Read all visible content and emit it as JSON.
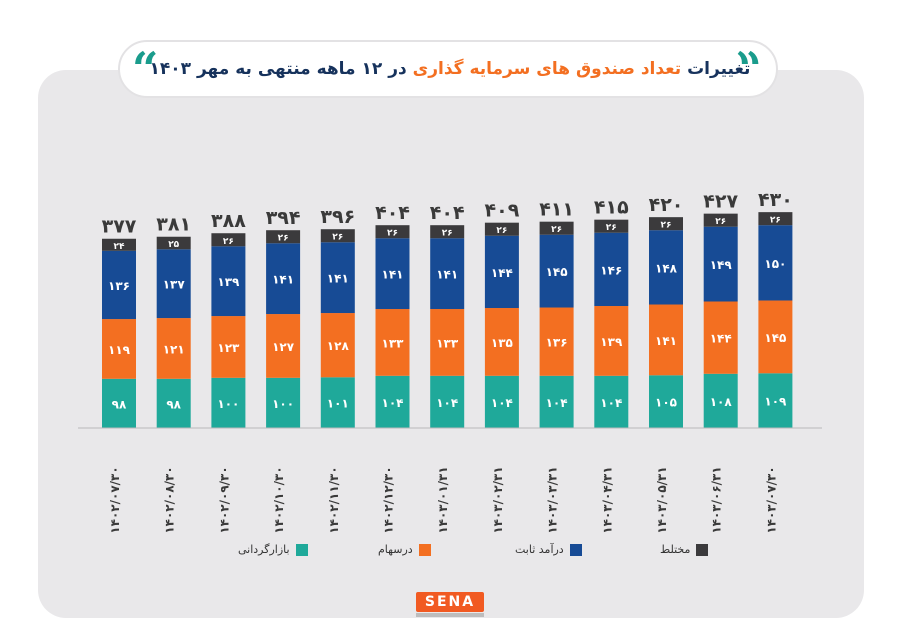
{
  "title": {
    "part1": "تغییرات",
    "part2": "تعداد صندوق های سرمایه گذاری",
    "part3": "در ۱۲ ماهه منتهی به مهر ۱۴۰۳",
    "colors": {
      "dark": "#16325c",
      "accent": "#f36f21"
    }
  },
  "quote_glyph": "“",
  "logo_text": "SENA",
  "chart_data": {
    "type": "bar",
    "stacked": true,
    "categories": [
      "۱۴۰۲/۰۷/۳۰",
      "۱۴۰۲/۰۸/۳۰",
      "۱۴۰۲/۰۹/۳۰",
      "۱۴۰۲/۱۰/۳۰",
      "۱۴۰۲/۱۱/۳۰",
      "۱۴۰۲/۱۲/۳۰",
      "۱۴۰۳/۰۱/۳۱",
      "۱۴۰۳/۰۲/۳۱",
      "۱۴۰۳/۰۳/۳۱",
      "۱۴۰۳/۰۴/۳۱",
      "۱۴۰۳/۰۵/۳۱",
      "۱۴۰۳/۰۶/۳۱",
      "۱۴۰۳/۰۷/۳۰"
    ],
    "series": [
      {
        "name": "بازارگردانی",
        "color": "#1fa99a",
        "values": [
          98,
          98,
          100,
          100,
          101,
          104,
          104,
          104,
          104,
          104,
          105,
          108,
          109
        ],
        "labels": [
          "۹۸",
          "۹۸",
          "۱۰۰",
          "۱۰۰",
          "۱۰۱",
          "۱۰۴",
          "۱۰۴",
          "۱۰۴",
          "۱۰۴",
          "۱۰۴",
          "۱۰۵",
          "۱۰۸",
          "۱۰۹"
        ]
      },
      {
        "name": "درسهام",
        "color": "#f36f21",
        "values": [
          119,
          121,
          123,
          127,
          128,
          133,
          133,
          135,
          136,
          139,
          141,
          144,
          145
        ],
        "labels": [
          "۱۱۹",
          "۱۲۱",
          "۱۲۳",
          "۱۲۷",
          "۱۲۸",
          "۱۳۳",
          "۱۳۳",
          "۱۳۵",
          "۱۳۶",
          "۱۳۹",
          "۱۴۱",
          "۱۴۴",
          "۱۴۵"
        ]
      },
      {
        "name": "درآمد ثابت",
        "color": "#174b95",
        "values": [
          136,
          137,
          139,
          141,
          141,
          141,
          141,
          144,
          145,
          146,
          148,
          149,
          150
        ],
        "labels": [
          "۱۳۶",
          "۱۳۷",
          "۱۳۹",
          "۱۴۱",
          "۱۴۱",
          "۱۴۱",
          "۱۴۱",
          "۱۴۴",
          "۱۴۵",
          "۱۴۶",
          "۱۴۸",
          "۱۴۹",
          "۱۵۰"
        ]
      },
      {
        "name": "مختلط",
        "color": "#3b3a3c",
        "values": [
          24,
          25,
          26,
          26,
          26,
          26,
          26,
          26,
          26,
          26,
          26,
          26,
          26
        ],
        "labels": [
          "۲۴",
          "۲۵",
          "۲۶",
          "۲۶",
          "۲۶",
          "۲۶",
          "۲۶",
          "۲۶",
          "۲۶",
          "۲۶",
          "۲۶",
          "۲۶",
          "۲۶"
        ]
      }
    ],
    "totals": [
      377,
      381,
      388,
      394,
      396,
      404,
      404,
      409,
      411,
      415,
      420,
      427,
      430
    ],
    "total_labels": [
      "۳۷۷",
      "۳۸۱",
      "۳۸۸",
      "۳۹۴",
      "۳۹۶",
      "۴۰۴",
      "۴۰۴",
      "۴۰۹",
      "۴۱۱",
      "۴۱۵",
      "۴۲۰",
      "۴۲۷",
      "۴۳۰"
    ],
    "legend_position": "bottom",
    "grid": false
  }
}
